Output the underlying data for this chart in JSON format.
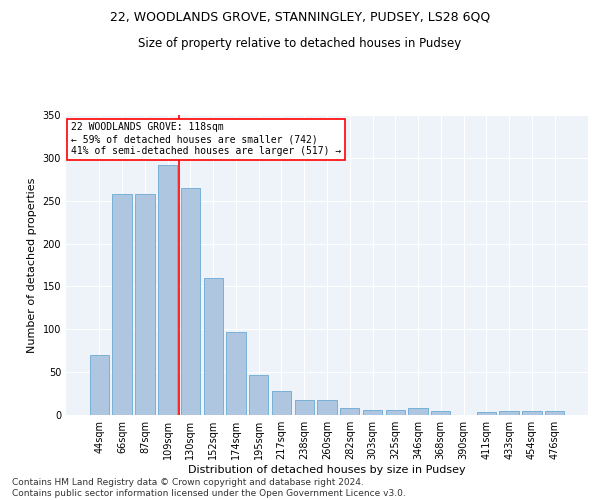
{
  "title": "22, WOODLANDS GROVE, STANNINGLEY, PUDSEY, LS28 6QQ",
  "subtitle": "Size of property relative to detached houses in Pudsey",
  "xlabel": "Distribution of detached houses by size in Pudsey",
  "ylabel": "Number of detached properties",
  "categories": [
    "44sqm",
    "66sqm",
    "87sqm",
    "109sqm",
    "130sqm",
    "152sqm",
    "174sqm",
    "195sqm",
    "217sqm",
    "238sqm",
    "260sqm",
    "282sqm",
    "303sqm",
    "325sqm",
    "346sqm",
    "368sqm",
    "390sqm",
    "411sqm",
    "433sqm",
    "454sqm",
    "476sqm"
  ],
  "values": [
    70,
    258,
    258,
    292,
    265,
    160,
    97,
    47,
    28,
    18,
    18,
    8,
    6,
    6,
    8,
    5,
    0,
    3,
    5,
    5,
    5
  ],
  "bar_color": "#aec6e0",
  "bar_edge_color": "#6aaad4",
  "bar_edge_width": 0.6,
  "red_line_index": 3,
  "annotation_text": "22 WOODLANDS GROVE: 118sqm\n← 59% of detached houses are smaller (742)\n41% of semi-detached houses are larger (517) →",
  "annotation_box_color": "white",
  "annotation_box_edge_color": "red",
  "ylim": [
    0,
    350
  ],
  "yticks": [
    0,
    50,
    100,
    150,
    200,
    250,
    300,
    350
  ],
  "bg_color": "#eef2f9",
  "footer": "Contains HM Land Registry data © Crown copyright and database right 2024.\nContains public sector information licensed under the Open Government Licence v3.0.",
  "title_fontsize": 9,
  "subtitle_fontsize": 8.5,
  "xlabel_fontsize": 8,
  "ylabel_fontsize": 8,
  "tick_fontsize": 7,
  "footer_fontsize": 6.5,
  "annotation_fontsize": 7
}
